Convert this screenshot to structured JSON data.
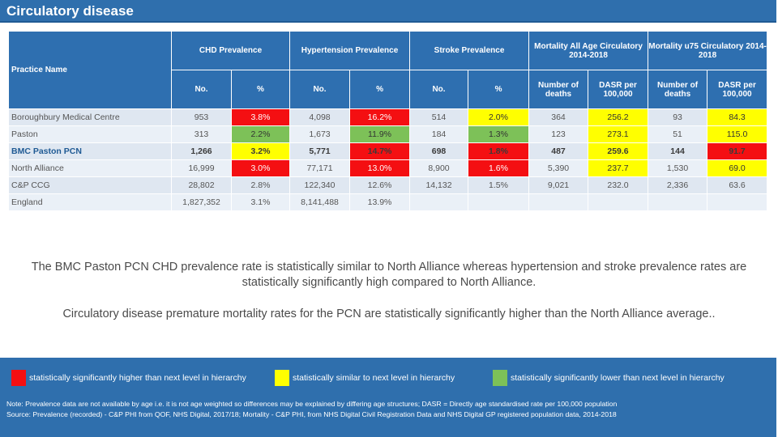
{
  "title": "Circulatory disease",
  "table": {
    "practice_header": "Practice Name",
    "groups": [
      {
        "label": "CHD Prevalence"
      },
      {
        "label": "Hypertension Prevalence"
      },
      {
        "label": "Stroke Prevalence"
      },
      {
        "label": "Mortality All Age Circulatory 2014-2018"
      },
      {
        "label": "Mortality u75 Circulatory 2014-2018"
      }
    ],
    "subheaders": [
      "No.",
      "%",
      "No.",
      "%",
      "No.",
      "%",
      "Number of deaths",
      "DASR per 100,000",
      "Number of deaths",
      "DASR per 100,000"
    ],
    "rows": [
      {
        "name": "Boroughbury Medical Centre",
        "bold": false,
        "cells": [
          {
            "v": "953",
            "c": ""
          },
          {
            "v": "3.8%",
            "c": "red"
          },
          {
            "v": "4,098",
            "c": ""
          },
          {
            "v": "16.2%",
            "c": "red"
          },
          {
            "v": "514",
            "c": ""
          },
          {
            "v": "2.0%",
            "c": "yellow"
          },
          {
            "v": "364",
            "c": ""
          },
          {
            "v": "256.2",
            "c": "yellow"
          },
          {
            "v": "93",
            "c": ""
          },
          {
            "v": "84.3",
            "c": "yellow"
          }
        ]
      },
      {
        "name": "Paston",
        "bold": false,
        "cells": [
          {
            "v": "313",
            "c": ""
          },
          {
            "v": "2.2%",
            "c": "green"
          },
          {
            "v": "1,673",
            "c": ""
          },
          {
            "v": "11.9%",
            "c": "green"
          },
          {
            "v": "184",
            "c": ""
          },
          {
            "v": "1.3%",
            "c": "green"
          },
          {
            "v": "123",
            "c": ""
          },
          {
            "v": "273.1",
            "c": "yellow"
          },
          {
            "v": "51",
            "c": ""
          },
          {
            "v": "115.0",
            "c": "yellow"
          }
        ]
      },
      {
        "name": "BMC Paston PCN",
        "bold": true,
        "cells": [
          {
            "v": "1,266",
            "c": ""
          },
          {
            "v": "3.2%",
            "c": "yellow"
          },
          {
            "v": "5,771",
            "c": ""
          },
          {
            "v": "14.7%",
            "c": "red"
          },
          {
            "v": "698",
            "c": ""
          },
          {
            "v": "1.8%",
            "c": "red"
          },
          {
            "v": "487",
            "c": ""
          },
          {
            "v": "259.6",
            "c": "yellow"
          },
          {
            "v": "144",
            "c": ""
          },
          {
            "v": "91.7",
            "c": "red"
          }
        ]
      },
      {
        "name": "North Alliance",
        "bold": false,
        "cells": [
          {
            "v": "16,999",
            "c": ""
          },
          {
            "v": "3.0%",
            "c": "red"
          },
          {
            "v": "77,171",
            "c": ""
          },
          {
            "v": "13.0%",
            "c": "red"
          },
          {
            "v": "8,900",
            "c": ""
          },
          {
            "v": "1.6%",
            "c": "red"
          },
          {
            "v": "5,390",
            "c": ""
          },
          {
            "v": "237.7",
            "c": "yellow"
          },
          {
            "v": "1,530",
            "c": ""
          },
          {
            "v": "69.0",
            "c": "yellow"
          }
        ]
      },
      {
        "name": "C&P CCG",
        "bold": false,
        "cells": [
          {
            "v": "28,802",
            "c": ""
          },
          {
            "v": "2.8%",
            "c": ""
          },
          {
            "v": "122,340",
            "c": ""
          },
          {
            "v": "12.6%",
            "c": ""
          },
          {
            "v": "14,132",
            "c": ""
          },
          {
            "v": "1.5%",
            "c": ""
          },
          {
            "v": "9,021",
            "c": ""
          },
          {
            "v": "232.0",
            "c": ""
          },
          {
            "v": "2,336",
            "c": ""
          },
          {
            "v": "63.6",
            "c": ""
          }
        ]
      },
      {
        "name": "England",
        "bold": false,
        "cells": [
          {
            "v": "1,827,352",
            "c": ""
          },
          {
            "v": "3.1%",
            "c": ""
          },
          {
            "v": "8,141,488",
            "c": ""
          },
          {
            "v": "13.9%",
            "c": ""
          },
          {
            "v": "",
            "c": ""
          },
          {
            "v": "",
            "c": ""
          },
          {
            "v": "",
            "c": ""
          },
          {
            "v": "",
            "c": ""
          },
          {
            "v": "",
            "c": ""
          },
          {
            "v": "",
            "c": ""
          }
        ]
      }
    ]
  },
  "summary": [
    "The BMC Paston PCN CHD prevalence rate is statistically similar to North Alliance whereas hypertension and stroke prevalence rates are statistically significantly high compared to North Alliance.",
    "Circulatory disease premature mortality rates for the PCN are statistically significantly higher than the North Alliance average.."
  ],
  "legend": [
    {
      "label": "statistically significantly higher than next level in hierarchy",
      "color": "#f40f12"
    },
    {
      "label": "statistically similar to next level in hierarchy",
      "color": "#ffff00"
    },
    {
      "label": "statistically significantly lower than next level in hierarchy",
      "color": "#7dc158"
    }
  ],
  "notes": [
    "Note: Prevalence data are not available by age i.e. it is not age weighted so differences may be explained by differing age structures; DASR = Directly age standardised rate per 100,000 population",
    "Source: Prevalence (recorded) - C&P PHI from QOF, NHS Digital, 2017/18; Mortality - C&P PHI, from NHS Digital Civil Registration Data and NHS Digital GP registered population data, 2014-2018"
  ]
}
